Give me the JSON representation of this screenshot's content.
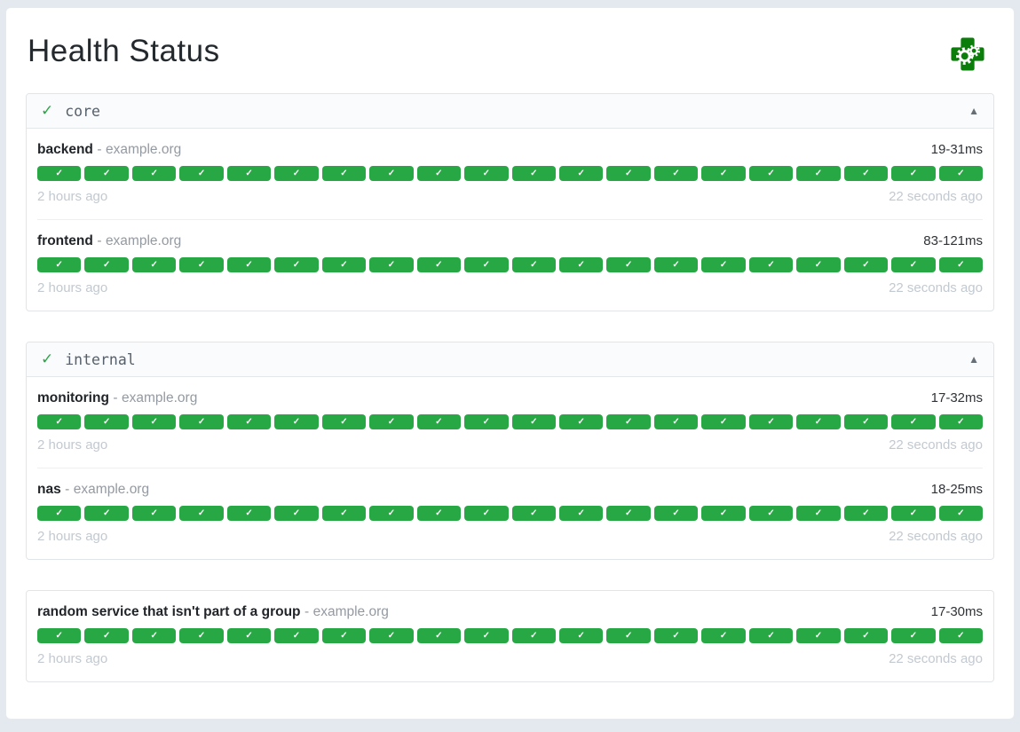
{
  "page": {
    "title": "Health Status"
  },
  "icons": {
    "logo": "gatus-health-cross-gears",
    "status_ok": "✓",
    "collapse": "▲",
    "segment_ok": "✓"
  },
  "separator": "-",
  "colors": {
    "success_green": "#28a745",
    "logo_green": "#0b7d0b",
    "page_background": "#e3e9ef",
    "card_background": "#ffffff"
  },
  "groups": [
    {
      "name": "core",
      "status": "ok",
      "services": [
        {
          "name": "backend",
          "host": "example.org",
          "response_time": "19-31ms",
          "oldest_check": "2 hours ago",
          "newest_check": "22 seconds ago",
          "checks": {
            "count": 20,
            "status": "ok"
          }
        },
        {
          "name": "frontend",
          "host": "example.org",
          "response_time": "83-121ms",
          "oldest_check": "2 hours ago",
          "newest_check": "22 seconds ago",
          "checks": {
            "count": 20,
            "status": "ok"
          }
        }
      ]
    },
    {
      "name": "internal",
      "status": "ok",
      "services": [
        {
          "name": "monitoring",
          "host": "example.org",
          "response_time": "17-32ms",
          "oldest_check": "2 hours ago",
          "newest_check": "22 seconds ago",
          "checks": {
            "count": 20,
            "status": "ok"
          }
        },
        {
          "name": "nas",
          "host": "example.org",
          "response_time": "18-25ms",
          "oldest_check": "2 hours ago",
          "newest_check": "22 seconds ago",
          "checks": {
            "count": 20,
            "status": "ok"
          }
        }
      ]
    },
    {
      "name": "",
      "status": "ok",
      "services": [
        {
          "name": "random service that isn't part of a group",
          "host": "example.org",
          "response_time": "17-30ms",
          "oldest_check": "2 hours ago",
          "newest_check": "22 seconds ago",
          "checks": {
            "count": 20,
            "status": "ok"
          }
        }
      ]
    }
  ]
}
